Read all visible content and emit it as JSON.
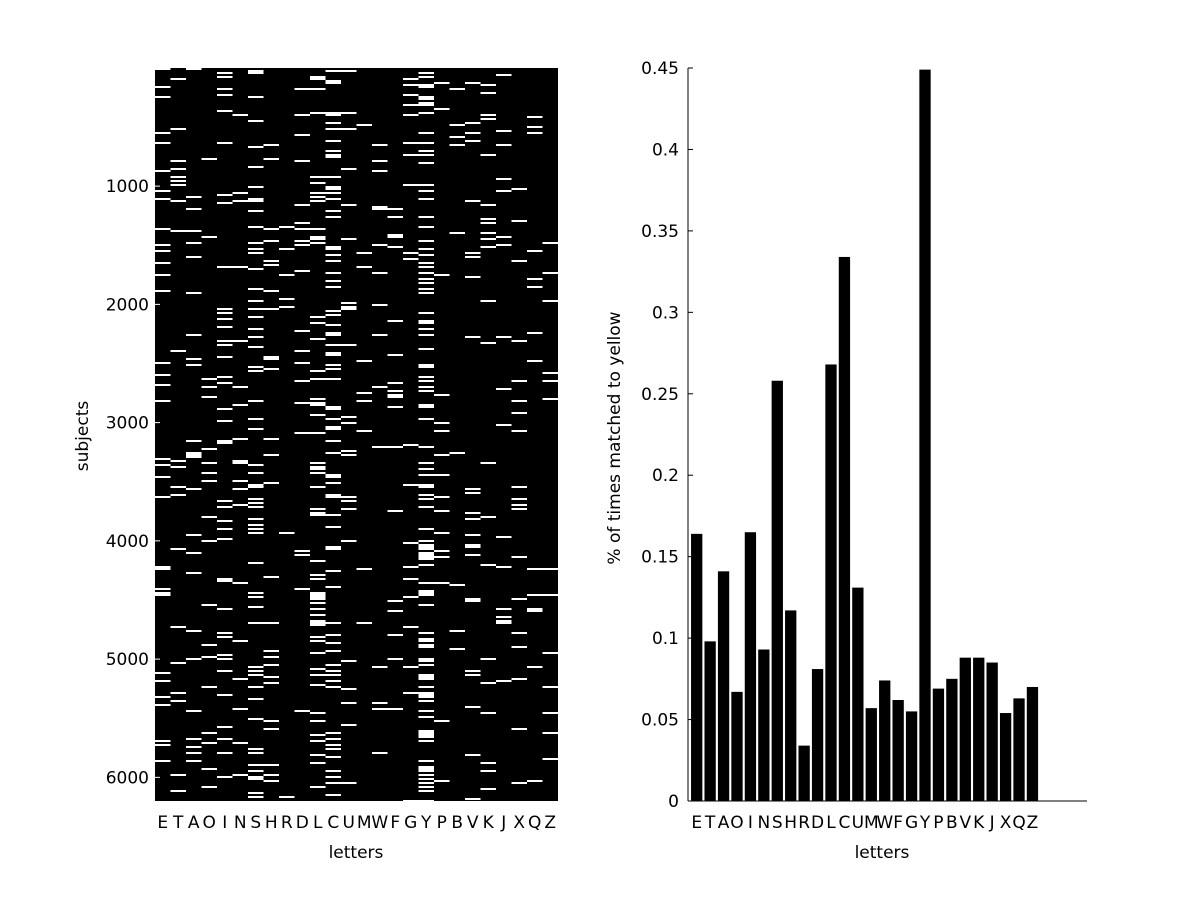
{
  "chart_data": [
    {
      "type": "heatmap",
      "xlabel": "letters",
      "ylabel": "subjects",
      "categories": [
        "E",
        "T",
        "A",
        "O",
        "I",
        "N",
        "S",
        "H",
        "R",
        "D",
        "L",
        "C",
        "U",
        "M",
        "W",
        "F",
        "G",
        "Y",
        "P",
        "B",
        "V",
        "K",
        "J",
        "X",
        "Q",
        "Z"
      ],
      "ylim": [
        1,
        6200
      ],
      "yticks": [
        1000,
        2000,
        3000,
        4000,
        5000,
        6000
      ],
      "y_direction": "reversed",
      "colormap": {
        "0": "#000000",
        "1": "#ffffff"
      },
      "grid": false,
      "value_description": "binary: 1 = subject matched the letter to yellow",
      "column_match_rates": [
        0.164,
        0.098,
        0.141,
        0.067,
        0.165,
        0.093,
        0.258,
        0.117,
        0.034,
        0.081,
        0.268,
        0.334,
        0.131,
        0.057,
        0.074,
        0.062,
        0.055,
        0.449,
        0.069,
        0.075,
        0.088,
        0.088,
        0.085,
        0.054,
        0.063,
        0.07
      ]
    },
    {
      "type": "bar",
      "xlabel": "letters",
      "ylabel": "% of times matched to yellow",
      "categories": [
        "E",
        "T",
        "A",
        "O",
        "I",
        "N",
        "S",
        "H",
        "R",
        "D",
        "L",
        "C",
        "U",
        "M",
        "W",
        "F",
        "G",
        "Y",
        "P",
        "B",
        "V",
        "K",
        "J",
        "X",
        "Q",
        "Z"
      ],
      "values": [
        0.164,
        0.098,
        0.141,
        0.067,
        0.165,
        0.093,
        0.258,
        0.117,
        0.034,
        0.081,
        0.268,
        0.334,
        0.131,
        0.057,
        0.074,
        0.062,
        0.055,
        0.449,
        0.069,
        0.075,
        0.088,
        0.088,
        0.085,
        0.054,
        0.063,
        0.07
      ],
      "ylim": [
        0,
        0.45
      ],
      "yticks": [
        "0",
        "0.05",
        "0.1",
        "0.15",
        "0.2",
        "0.25",
        "0.3",
        "0.35",
        "0.4",
        "0.45"
      ],
      "bar_color": "#000000",
      "grid": false
    }
  ]
}
